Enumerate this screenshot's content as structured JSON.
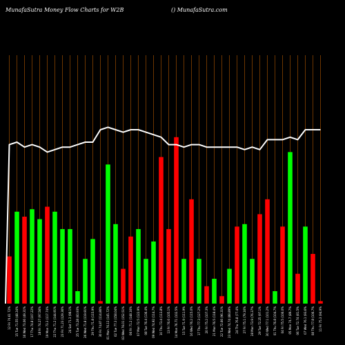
{
  "header": {
    "left": "MunafaSutra  Money Flow  Charts for W2B",
    "right": "() MunafaSutra.com"
  },
  "chart_data": {
    "type": "bar",
    "ylim": [
      0,
      100
    ],
    "line_ylim": [
      0,
      100
    ],
    "colors": {
      "up": "#00ff00",
      "down": "#ff0000",
      "line": "#ffffff",
      "grid": "#8b4500",
      "background": "#000000"
    },
    "categories": [
      "12 Fri 74.61 72%",
      "15 Tue 71.55 (48.34%",
      "16 Wed 73.06 (49.31%",
      "17 Thu 74.8 (107.22%",
      "18 Fri 74.27 (97.56%",
      "19 Mon 73.3 (117.74%",
      "22 Thu 71.2 (144.91%",
      "23 Fri 71.23 (129.36%",
      "24 Sat 71.3 (98.1%",
      "25 Tue 73.28 (60.93%",
      "26 Wed 71.8 (119.91%",
      "29 Thu 71.8 (115.9%",
      "30 Fri 74.87 (114.86%",
      "01 Mon 76.13 (145.72%",
      "02 Tue 77.3 (158.04%",
      "03 Wed 76.01 (152.51%",
      "06 Fri 71.2 (148.16%",
      "07 Mon 72.5 (122.9%",
      "08 Tue 76.4 (136.4%",
      "09 Wed 74.92 (114.7%",
      "10 Thu 73.4 (113.8%",
      "13 Fri 76.6 (105.1%",
      "14 Mon 76.71 (102.5%",
      "15 Tue 71.9 (111.9%",
      "16 Wed 76.2 (115.0%",
      "17 Thu 77.3 (127.2%",
      "20 Fri 75.2 (107.3%",
      "21 Mon 76.5 (118.4%",
      "22 Tue 72.66 (96.31%",
      "23 Wed 74.74 (88.89%",
      "24 Thu 76.8 (77.4%",
      "27 Fri 75.1 (79.16%",
      "28 Mon 73.9 (76.37%",
      "29 Tue 72.25 (97.1%",
      "30 Wed 77.1 (101.2%",
      "01 Thu 76.8 (104.7%",
      "04 Fri 75.5 (106.0%",
      "05 Mon 74.7 (89.7%",
      "06 Tue 72.74 (81.5%",
      "07 Wed 76.1 (93.6%",
      "08 Thu 77.8 (106.7%",
      "11 Fri 75.3 (94.9%"
    ],
    "bar_colors": [
      "down",
      "up",
      "down",
      "up",
      "up",
      "down",
      "up",
      "up",
      "up",
      "up",
      "up",
      "up",
      "down",
      "up",
      "up",
      "down",
      "down",
      "up",
      "up",
      "up",
      "down",
      "down",
      "down",
      "up",
      "down",
      "up",
      "down",
      "up",
      "down",
      "up",
      "down",
      "up",
      "up",
      "down",
      "down",
      "up",
      "down",
      "up",
      "down",
      "up",
      "down",
      "down"
    ],
    "values": [
      19,
      37,
      35,
      38,
      34,
      39,
      37,
      30,
      30,
      5,
      18,
      26,
      1,
      56,
      32,
      14,
      27,
      30,
      18,
      25,
      59,
      30,
      67,
      18,
      42,
      18,
      7,
      10,
      3,
      14,
      31,
      32,
      18,
      36,
      42,
      5,
      31,
      61,
      12,
      31,
      20,
      1
    ],
    "line_values": [
      64,
      65,
      63,
      64,
      63,
      61,
      62,
      63,
      63,
      64,
      65,
      65,
      70,
      71,
      70,
      69,
      70,
      70,
      69,
      68,
      67,
      64,
      64,
      63,
      64,
      64,
      63,
      63,
      63,
      63,
      63,
      62,
      63,
      62,
      66,
      66,
      66,
      67,
      66,
      70,
      70,
      70
    ]
  }
}
